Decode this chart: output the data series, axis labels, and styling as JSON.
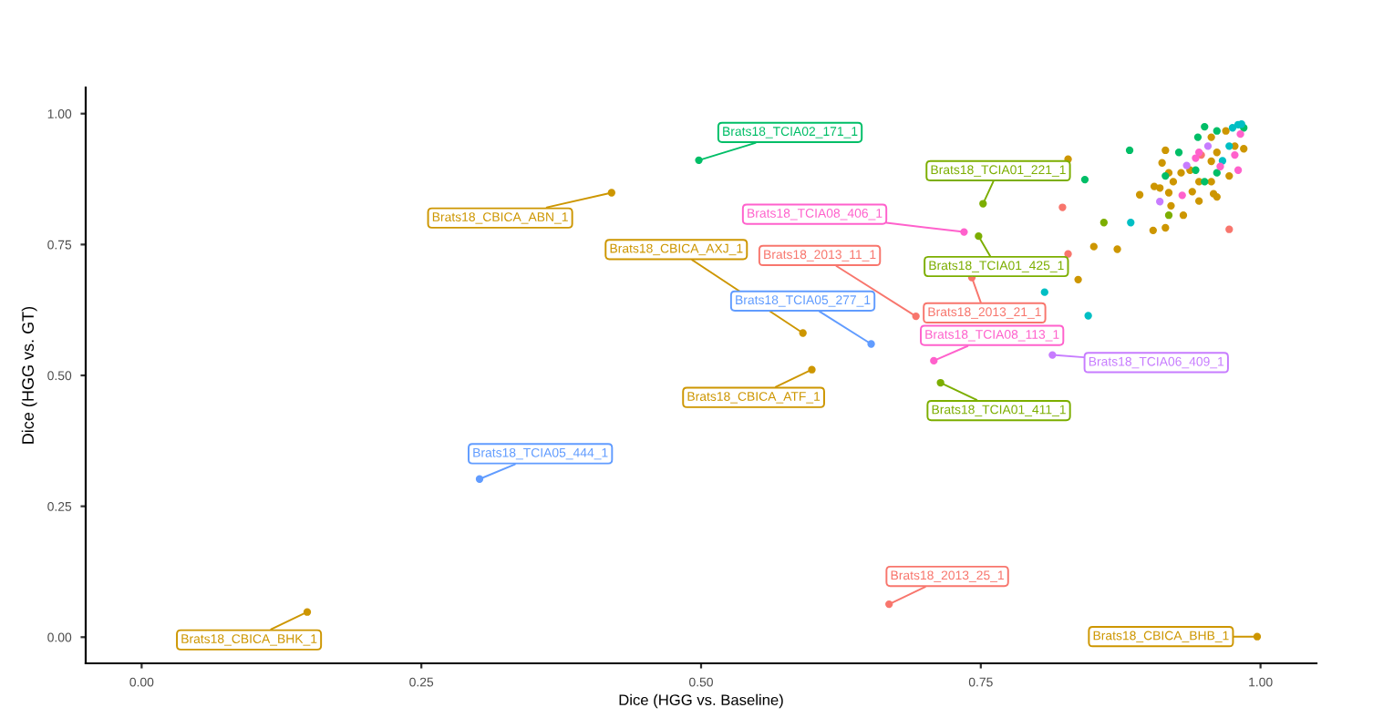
{
  "chart_data": {
    "type": "scatter",
    "xlabel": "Dice (HGG vs. Baseline)",
    "ylabel": "Dice (HGG vs. GT)",
    "xlim": [
      -0.05,
      1.05
    ],
    "ylim": [
      -0.05,
      1.05
    ],
    "xticks": [
      {
        "value": 0,
        "label": "0.00"
      },
      {
        "value": 0.25,
        "label": "0.25"
      },
      {
        "value": 0.5,
        "label": "0.50"
      },
      {
        "value": 0.75,
        "label": "0.75"
      },
      {
        "value": 1,
        "label": "1.00"
      }
    ],
    "yticks": [
      {
        "value": 0,
        "label": "0.00"
      },
      {
        "value": 0.25,
        "label": "0.25"
      },
      {
        "value": 0.5,
        "label": "0.50"
      },
      {
        "value": 0.75,
        "label": "0.75"
      },
      {
        "value": 1,
        "label": "1.00"
      }
    ],
    "grid": false,
    "marker": "circle",
    "series": [
      {
        "color": "#f8766d",
        "x": [
          0.692,
          0.668,
          0.742,
          0.823,
          0.828,
          0.972,
          0.947
        ],
        "values": [
          0.613,
          0.063,
          0.687,
          0.821,
          0.732,
          0.779,
          0.921
        ]
      },
      {
        "color": "#cd9600",
        "x": [
          0.42,
          0.148,
          0.591,
          0.599,
          0.997,
          0.828,
          0.892,
          0.851,
          0.872,
          0.837,
          0.904,
          0.915,
          0.915,
          0.912,
          0.918,
          0.956,
          0.961,
          0.969,
          0.977,
          0.956,
          0.945,
          0.937,
          0.929,
          0.922,
          0.905,
          0.918,
          0.91,
          0.939,
          0.92,
          0.931,
          0.945,
          0.961,
          0.958,
          0.972,
          0.985,
          0.956
        ],
        "values": [
          0.849,
          0.048,
          0.581,
          0.511,
          0.001,
          0.913,
          0.845,
          0.746,
          0.741,
          0.683,
          0.777,
          0.782,
          0.93,
          0.906,
          0.887,
          0.955,
          0.926,
          0.967,
          0.938,
          0.87,
          0.87,
          0.892,
          0.887,
          0.87,
          0.861,
          0.849,
          0.858,
          0.851,
          0.824,
          0.806,
          0.833,
          0.841,
          0.847,
          0.881,
          0.933,
          0.909
        ]
      },
      {
        "color": "#7cae00",
        "x": [
          0.714,
          0.752,
          0.748,
          0.86,
          0.918
        ],
        "values": [
          0.486,
          0.828,
          0.766,
          0.792,
          0.806
        ]
      },
      {
        "color": "#00be67",
        "x": [
          0.498,
          0.843,
          0.883,
          0.95,
          0.927,
          0.944,
          0.915,
          0.942,
          0.95,
          0.961,
          0.985,
          0.961
        ],
        "values": [
          0.911,
          0.874,
          0.93,
          0.975,
          0.926,
          0.955,
          0.881,
          0.892,
          0.87,
          0.967,
          0.973,
          0.887
        ]
      },
      {
        "color": "#00bfc4",
        "x": [
          0.884,
          0.807,
          0.846,
          0.975,
          0.98,
          0.966,
          0.972,
          0.983
        ],
        "values": [
          0.792,
          0.659,
          0.614,
          0.973,
          0.979,
          0.91,
          0.938,
          0.98
        ]
      },
      {
        "color": "#619cff",
        "x": [
          0.302,
          0.652
        ],
        "values": [
          0.302,
          0.56
        ]
      },
      {
        "color": "#c77cff",
        "x": [
          0.814,
          0.934,
          0.91,
          0.953
        ],
        "values": [
          0.539,
          0.901,
          0.832,
          0.938
        ]
      },
      {
        "color": "#ff61cc",
        "x": [
          0.708,
          0.735,
          0.945,
          0.982,
          0.964,
          0.98,
          0.93,
          0.942,
          0.977
        ],
        "values": [
          0.528,
          0.774,
          0.926,
          0.961,
          0.899,
          0.892,
          0.844,
          0.915,
          0.921
        ]
      }
    ],
    "annotations": [
      {
        "text": "Brats18_TCIA02_171_1",
        "x": 0.498,
        "y": 0.911
      },
      {
        "text": "Brats18_CBICA_ABN_1",
        "x": 0.42,
        "y": 0.849
      },
      {
        "text": "Brats18_CBICA_BHK_1",
        "x": 0.148,
        "y": 0.048
      },
      {
        "text": "Brats18_TCIA05_444_1",
        "x": 0.302,
        "y": 0.302
      },
      {
        "text": "Brats18_CBICA_AXJ_1",
        "x": 0.591,
        "y": 0.581
      },
      {
        "text": "Brats18_CBICA_ATF_1",
        "x": 0.599,
        "y": 0.511
      },
      {
        "text": "Brats18_TCIA05_277_1",
        "x": 0.652,
        "y": 0.56
      },
      {
        "text": "Brats18_2013_11_1",
        "x": 0.692,
        "y": 0.613
      },
      {
        "text": "Brats18_TCIA08_113_1",
        "x": 0.708,
        "y": 0.528
      },
      {
        "text": "Brats18_TCIA01_411_1",
        "x": 0.714,
        "y": 0.486
      },
      {
        "text": "Brats18_2013_25_1",
        "x": 0.668,
        "y": 0.063
      },
      {
        "text": "Brats18_CBICA_BHB_1",
        "x": 0.997,
        "y": 0.001
      },
      {
        "text": "Brats18_TCIA01_221_1",
        "x": 0.752,
        "y": 0.828
      },
      {
        "text": "Brats18_TCIA08_406_1",
        "x": 0.735,
        "y": 0.774
      },
      {
        "text": "Brats18_TCIA01_425_1",
        "x": 0.748,
        "y": 0.766
      },
      {
        "text": "Brats18_2013_21_1",
        "x": 0.742,
        "y": 0.687
      },
      {
        "text": "Brats18_TCIA06_409_1",
        "x": 0.814,
        "y": 0.539
      }
    ]
  }
}
